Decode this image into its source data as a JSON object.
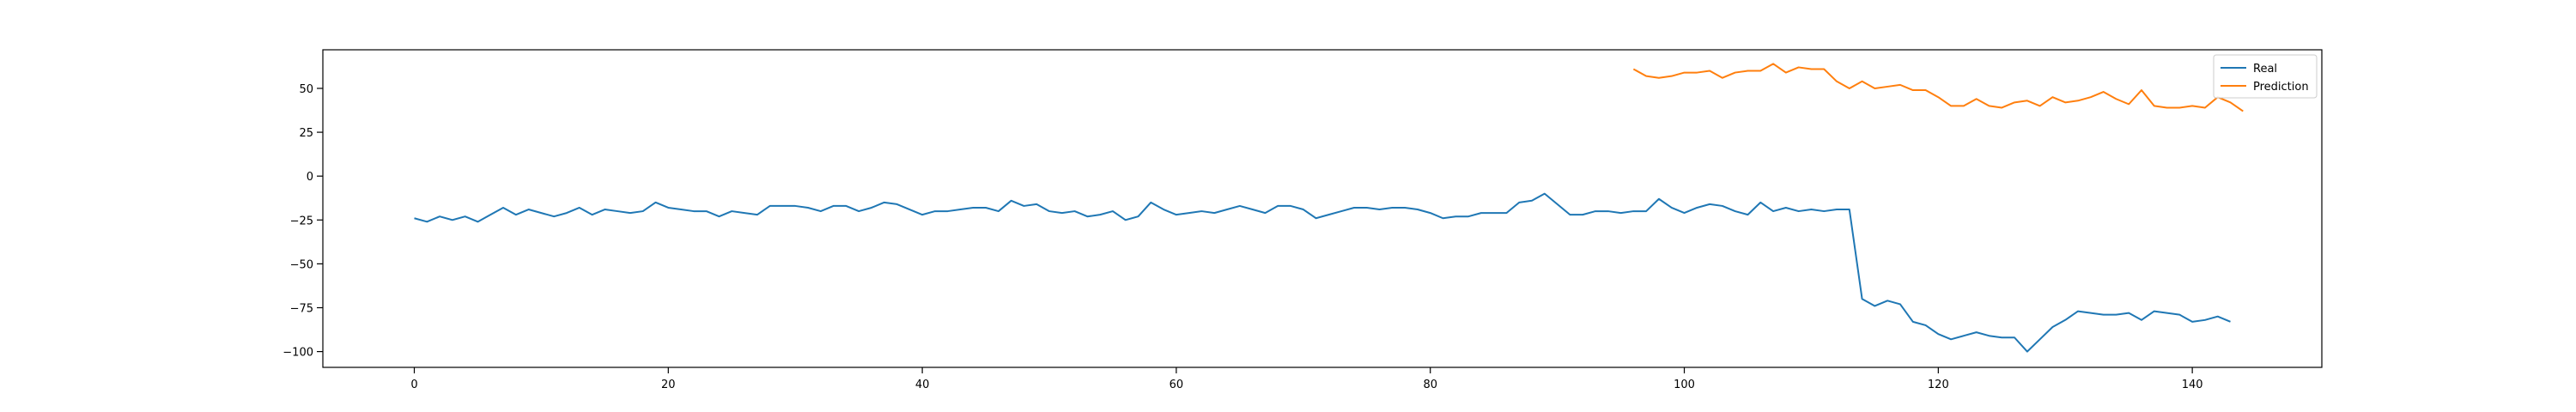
{
  "chart_data": {
    "type": "line",
    "title": "",
    "xlabel": "",
    "ylabel": "",
    "xlim": [
      -7.2,
      150.2
    ],
    "ylim": [
      -109,
      72
    ],
    "grid": false,
    "legend": "top-right",
    "x_ticks": [
      0,
      20,
      40,
      60,
      80,
      100,
      120,
      140
    ],
    "y_ticks": [
      50,
      25,
      0,
      -25,
      -50,
      -75,
      -100
    ],
    "series": [
      {
        "name": "Real",
        "color": "#1f77b4",
        "x_start": 0,
        "values": [
          -24,
          -26,
          -23,
          -25,
          -23,
          -26,
          -22,
          -18,
          -22,
          -19,
          -21,
          -23,
          -21,
          -18,
          -22,
          -19,
          -20,
          -21,
          -20,
          -15,
          -18,
          -19,
          -20,
          -20,
          -23,
          -20,
          -21,
          -22,
          -17,
          -17,
          -17,
          -18,
          -20,
          -17,
          -17,
          -20,
          -18,
          -15,
          -16,
          -19,
          -22,
          -20,
          -20,
          -19,
          -18,
          -18,
          -20,
          -14,
          -17,
          -16,
          -20,
          -21,
          -20,
          -23,
          -22,
          -20,
          -25,
          -23,
          -15,
          -19,
          -22,
          -21,
          -20,
          -21,
          -19,
          -17,
          -19,
          -21,
          -17,
          -17,
          -19,
          -24,
          -22,
          -20,
          -18,
          -18,
          -19,
          -18,
          -18,
          -19,
          -21,
          -24,
          -23,
          -23,
          -21,
          -21,
          -21,
          -15,
          -14,
          -10,
          -16,
          -22,
          -22,
          -20,
          -20,
          -21,
          -20,
          -20,
          -13,
          -18,
          -21,
          -18,
          -16,
          -17,
          -20,
          -22,
          -15,
          -20,
          -18,
          -20,
          -19,
          -20,
          -19,
          -19,
          -70,
          -74,
          -71,
          -73,
          -83,
          -85,
          -90,
          -93,
          -91,
          -89,
          -91,
          -92,
          -92,
          -100,
          -93,
          -86,
          -82,
          -77,
          -78,
          -79,
          -79,
          -78,
          -82,
          -77,
          -78,
          -79,
          -83,
          -82,
          -80,
          -83
        ]
      },
      {
        "name": "Prediction",
        "color": "#ff7f0e",
        "x_start": 96,
        "values": [
          61,
          57,
          56,
          57,
          59,
          59,
          60,
          56,
          59,
          60,
          60,
          64,
          59,
          62,
          61,
          61,
          54,
          50,
          54,
          50,
          51,
          52,
          49,
          49,
          45,
          40,
          40,
          44,
          40,
          39,
          42,
          43,
          40,
          45,
          42,
          43,
          45,
          48,
          44,
          41,
          49,
          40,
          39,
          39,
          40,
          39,
          45,
          42,
          37
        ]
      }
    ]
  }
}
